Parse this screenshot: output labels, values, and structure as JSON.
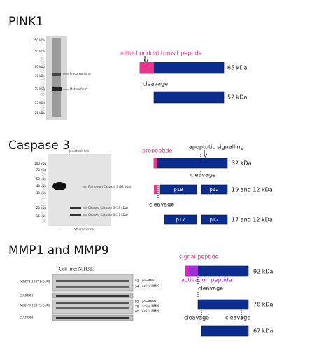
{
  "pink1": {
    "title": "PINK1",
    "blot": {
      "markers": [
        "250 kDa",
        "150 kDa",
        "100 kDa",
        "70 kDa",
        "50 kDa",
        "35 kDa",
        "25 kDa"
      ],
      "bands": [
        "Precursor form",
        "Mature form"
      ],
      "watermark": "WWW.PTGLAB.COM"
    },
    "diagram": {
      "peptide": "mitochondrial transit peptide",
      "full": "65 kDa",
      "cleavage": "cleavage",
      "mature": "52 kDa"
    }
  },
  "caspase3": {
    "title": "Caspase 3",
    "blot": {
      "header": "Jurkat cell line",
      "markers": [
        "100 kDa",
        "70 kDa",
        "50 kDa",
        "40 kDa",
        "30 kDa",
        "20 kDa",
        "15 kDa"
      ],
      "bands": [
        "Full length Caspase 3 (32 kDa)",
        "Cleaved Caspase 3 (19 kDa)",
        "Cleaved Caspase 3 (17 kDa)"
      ],
      "lanes": [
        "-",
        "Staurosporine"
      ],
      "watermark": "WWW.PTGLAB.COM"
    },
    "diagram": {
      "propeptide": "propeptide",
      "signal": "apoptotic signalling",
      "full": "32 kDa",
      "cleavage1": "cleavage",
      "p19": "p19",
      "p12a": "p12",
      "mid": "19 and 12 kDa",
      "cleavage2": "cleavage",
      "p17": "p17",
      "p12b": "p12",
      "low": "17 and 12 kDa"
    }
  },
  "mmp": {
    "title": "MMP1 and MMP9",
    "blot": {
      "header": "Cell line: NIH3T3",
      "rows": [
        "MMP1 10371-2-AP",
        "GAPDH",
        "MMP9 10375-2-AP",
        "GAPDH"
      ],
      "sizes": [
        "62",
        "54",
        "92",
        "78",
        "67"
      ],
      "bands": [
        "pro-MMP1",
        "active MMP1",
        "pro-MMP9",
        "active MMP9",
        "active MMP9"
      ]
    },
    "diagram": {
      "signal": "signal peptide",
      "activation": "activation peptide",
      "full": "92 kDa",
      "cleavage1": "cleavage",
      "mid": "78 kDa",
      "cleavage2": "cleavage",
      "cleavage3": "cleavage",
      "low": "67 kDa"
    }
  }
}
